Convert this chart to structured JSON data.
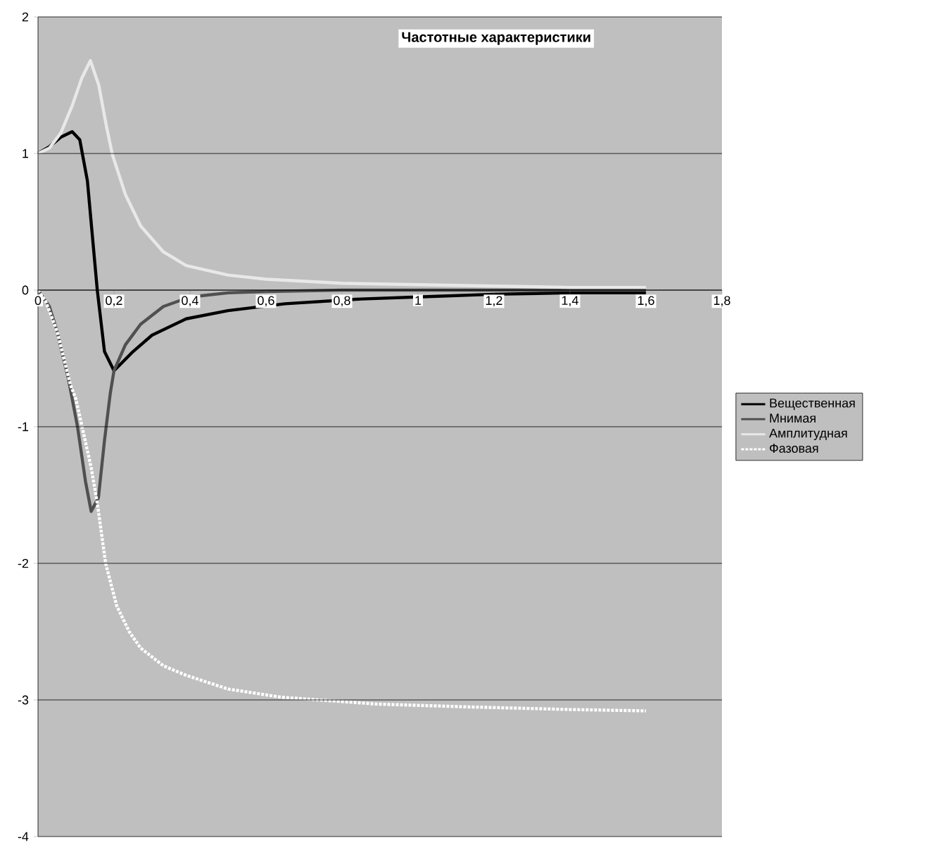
{
  "chart_data": {
    "type": "line",
    "title": "Частотные характеристики",
    "xlim": [
      0,
      1.8
    ],
    "ylim": [
      -4,
      2
    ],
    "xticks": [
      {
        "value": 0,
        "label": "0"
      },
      {
        "value": 0.2,
        "label": "0,2"
      },
      {
        "value": 0.4,
        "label": "0,4"
      },
      {
        "value": 0.6,
        "label": "0,6"
      },
      {
        "value": 0.8,
        "label": "0,8"
      },
      {
        "value": 1,
        "label": "1"
      },
      {
        "value": 1.2,
        "label": "1,2"
      },
      {
        "value": 1.4,
        "label": "1,4"
      },
      {
        "value": 1.6,
        "label": "1,6"
      },
      {
        "value": 1.8,
        "label": "1,8"
      }
    ],
    "yticks": [
      -4,
      -3,
      -2,
      -1,
      0,
      1,
      2
    ],
    "grid": "y",
    "legend": "right",
    "marker": "none",
    "series": [
      {
        "name": "Вещественная",
        "color": "#000000",
        "line_style": "solid",
        "x": [
          0,
          0.03,
          0.06,
          0.09,
          0.11,
          0.13,
          0.156,
          0.175,
          0.2,
          0.25,
          0.3,
          0.39,
          0.5,
          0.65,
          0.85,
          1.05,
          1.2,
          1.4,
          1.6
        ],
        "values": [
          1,
          1.05,
          1.12,
          1.16,
          1.1,
          0.8,
          0,
          -0.45,
          -0.59,
          -0.45,
          -0.33,
          -0.21,
          -0.15,
          -0.1,
          -0.065,
          -0.045,
          -0.03,
          -0.02,
          -0.02
        ]
      },
      {
        "name": "Мнимая",
        "color": "#505050",
        "line_style": "solid",
        "x": [
          0,
          0.03,
          0.05,
          0.08,
          0.104,
          0.125,
          0.14,
          0.159,
          0.175,
          0.19,
          0.2,
          0.23,
          0.27,
          0.33,
          0.4,
          0.5,
          0.6,
          0.8,
          1.0,
          1.2,
          1.6
        ],
        "values": [
          0,
          -0.12,
          -0.3,
          -0.65,
          -1.0,
          -1.4,
          -1.62,
          -1.52,
          -1.1,
          -0.76,
          -0.59,
          -0.4,
          -0.25,
          -0.12,
          -0.05,
          -0.02,
          -0.01,
          0,
          0,
          0,
          0
        ]
      },
      {
        "name": "Амплитудная",
        "color": "#e8e8e8",
        "line_style": "solid",
        "x": [
          0,
          0.03,
          0.06,
          0.09,
          0.115,
          0.138,
          0.16,
          0.18,
          0.196,
          0.23,
          0.27,
          0.33,
          0.39,
          0.5,
          0.6,
          0.8,
          1.0,
          1.2,
          1.4,
          1.6
        ],
        "values": [
          1,
          1.04,
          1.15,
          1.35,
          1.55,
          1.68,
          1.5,
          1.2,
          0.99,
          0.7,
          0.47,
          0.28,
          0.18,
          0.11,
          0.08,
          0.05,
          0.04,
          0.03,
          0.02,
          0.02
        ]
      },
      {
        "name": "Фазовая",
        "color": "#ffffff",
        "line_style": "dotted",
        "x": [
          0,
          0.02,
          0.05,
          0.085,
          0.1,
          0.116,
          0.14,
          0.156,
          0.178,
          0.207,
          0.24,
          0.27,
          0.33,
          0.39,
          0.5,
          0.64,
          0.89,
          1.12,
          1.4,
          1.6
        ],
        "values": [
          0,
          -0.08,
          -0.3,
          -0.69,
          -0.8,
          -1.0,
          -1.3,
          -1.56,
          -2.0,
          -2.31,
          -2.5,
          -2.62,
          -2.75,
          -2.82,
          -2.92,
          -2.98,
          -3.03,
          -3.05,
          -3.07,
          -3.08
        ]
      }
    ]
  }
}
